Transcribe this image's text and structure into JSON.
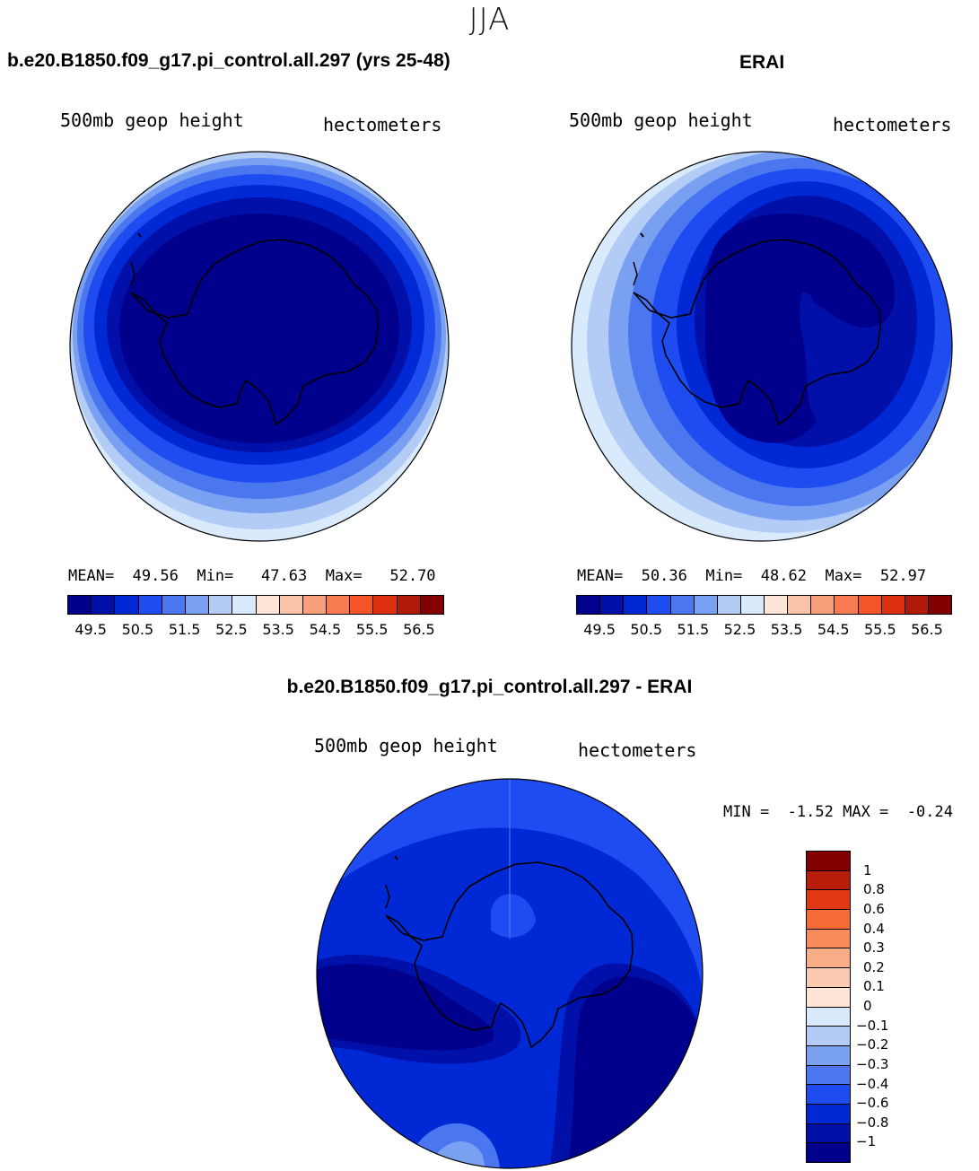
{
  "season": "JJA",
  "panels": {
    "model": {
      "title": "b.e20.B1850.f09_g17.pi_control.all.297 (yrs 25-48)",
      "variable": "500mb geop height",
      "units": "hectometers",
      "stats": {
        "mean_label": "MEAN=",
        "mean": "49.56",
        "min_label": "Min=",
        "min": "47.63",
        "max_label": "Max=",
        "max": "52.70"
      }
    },
    "obs": {
      "title": "ERAI",
      "variable": "500mb geop height",
      "units": "hectometers",
      "stats": {
        "mean_label": "MEAN=",
        "mean": "50.36",
        "min_label": "Min=",
        "min": "48.62",
        "max_label": "Max=",
        "max": "52.97"
      }
    },
    "diff": {
      "title": "b.e20.B1850.f09_g17.pi_control.all.297 - ERAI",
      "variable": "500mb geop height",
      "units": "hectometers",
      "stats": {
        "min_label": "MIN =",
        "min": "-1.52",
        "max_label": "MAX =",
        "max": "-0.24"
      }
    }
  },
  "colorbar_main": {
    "colors": [
      "#00008c",
      "#0010a8",
      "#0028d4",
      "#1e4cf0",
      "#4a76f0",
      "#7aa0f2",
      "#b2ccf6",
      "#d8eafb",
      "#fde6d8",
      "#f9c4a8",
      "#f8a07c",
      "#f87a50",
      "#f45428",
      "#dc3010",
      "#b01808",
      "#840000"
    ],
    "labels": [
      "49.5",
      "50.5",
      "51.5",
      "52.5",
      "53.5",
      "54.5",
      "55.5",
      "56.5"
    ]
  },
  "colorbar_diff": {
    "colors": [
      "#840000",
      "#b81c0a",
      "#e03812",
      "#f66a36",
      "#f88c5a",
      "#f9ad86",
      "#fbcab0",
      "#fde6d8",
      "#d8eafb",
      "#b2ccf6",
      "#7aa0f2",
      "#4a76f0",
      "#1e4cf0",
      "#0028d4",
      "#0010a8",
      "#00008c"
    ],
    "labels": [
      "1",
      "0.8",
      "0.6",
      "0.4",
      "0.3",
      "0.2",
      "0.1",
      "0",
      "−0.1",
      "−0.2",
      "−0.3",
      "−0.4",
      "−0.6",
      "−0.8",
      "−1"
    ]
  }
}
